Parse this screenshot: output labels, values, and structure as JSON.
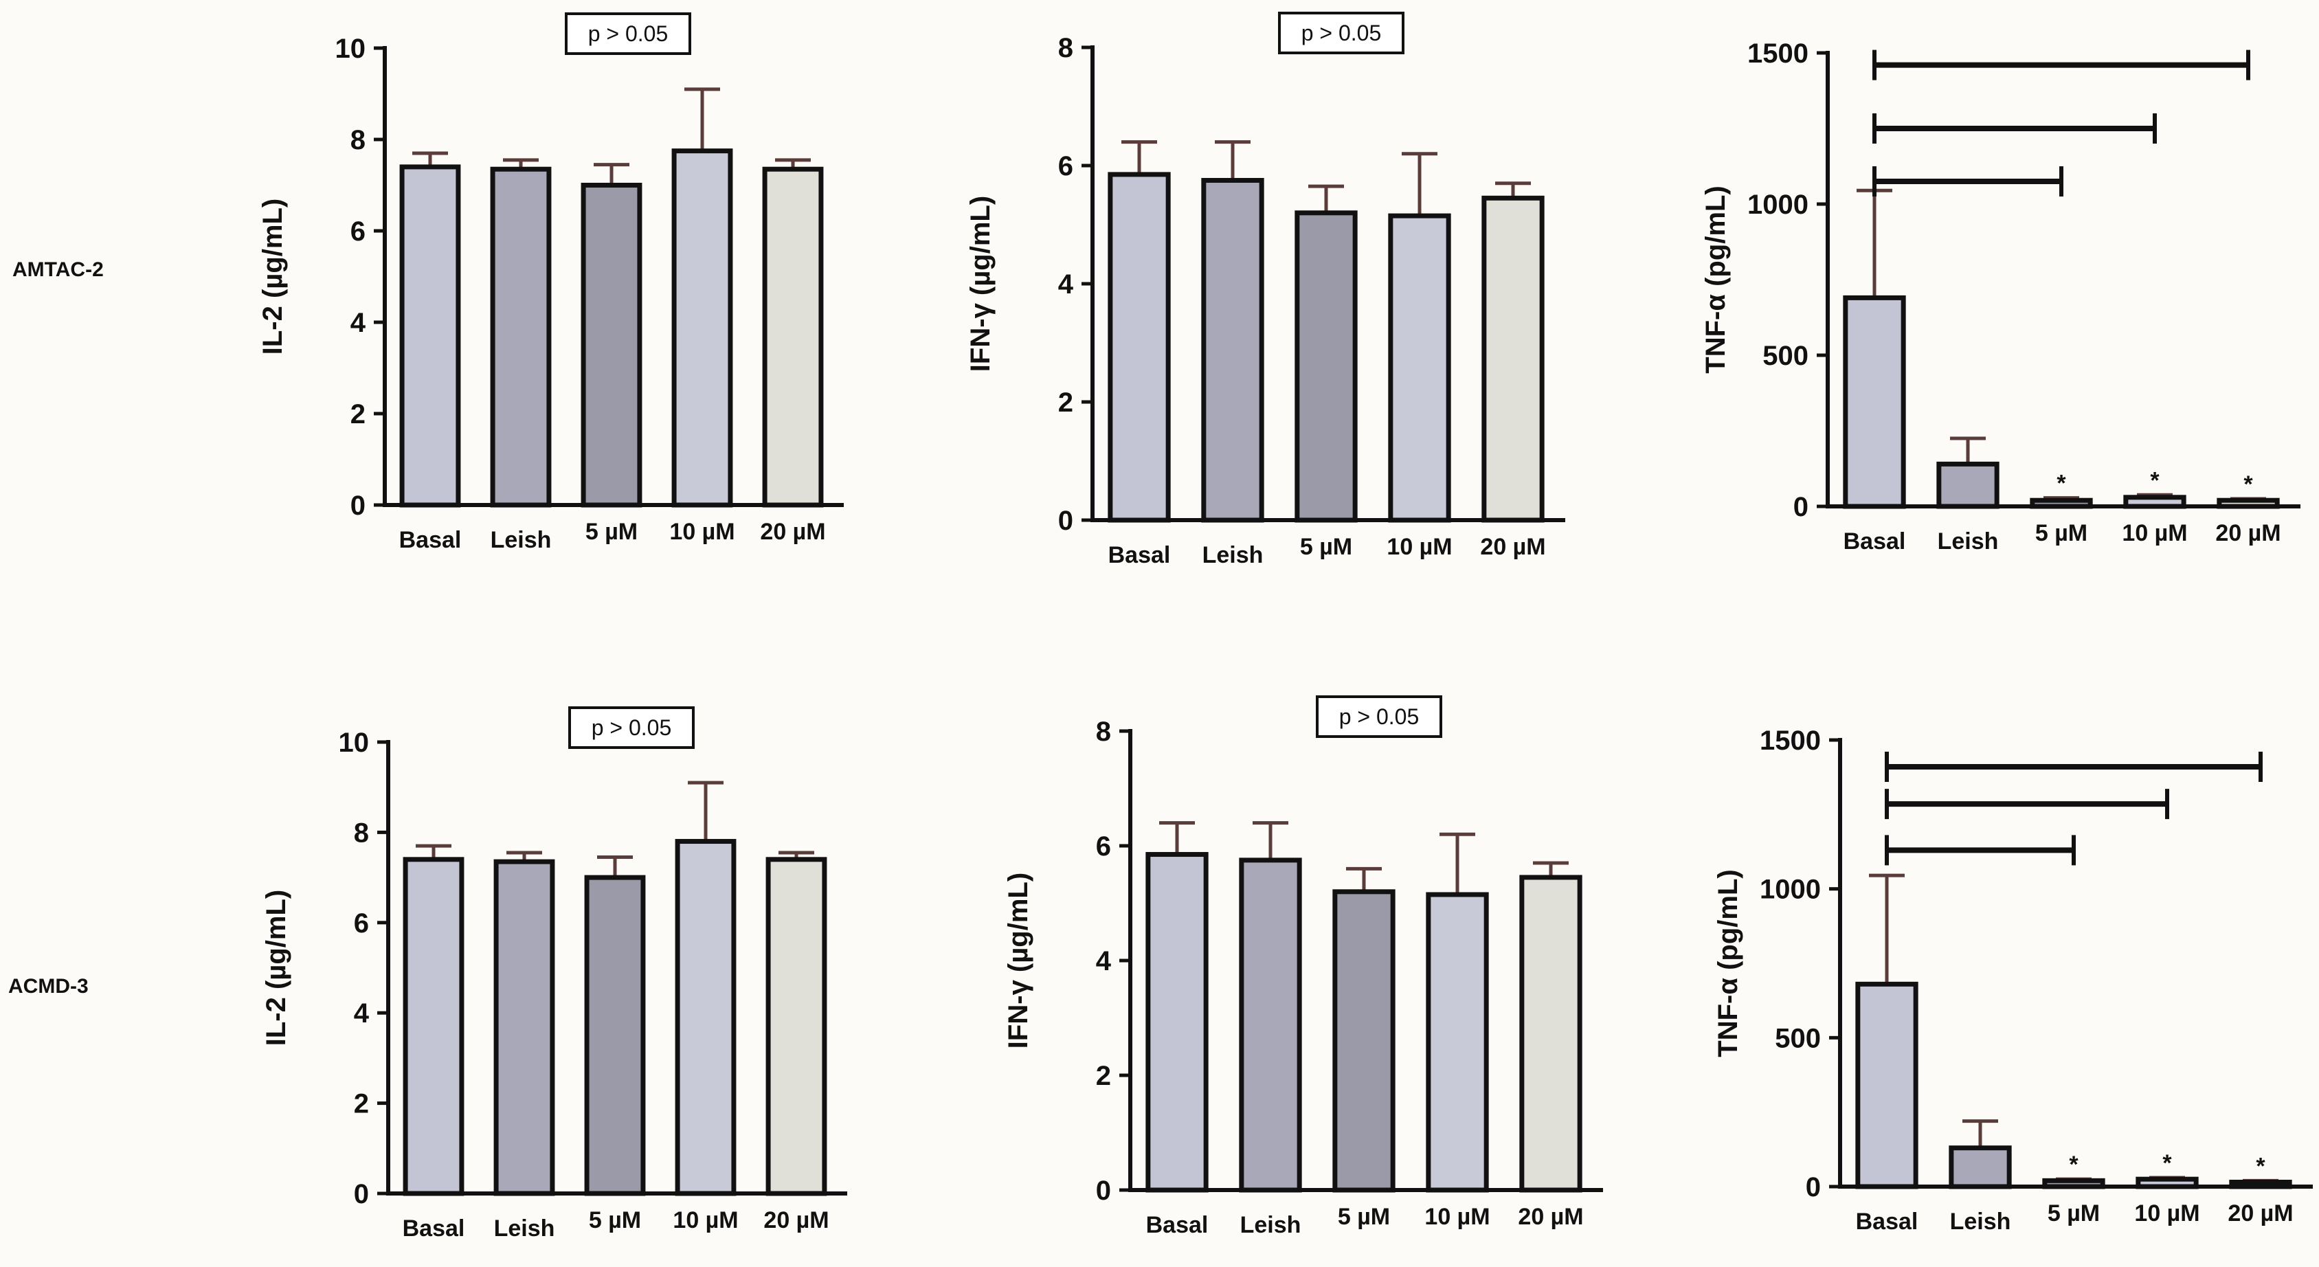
{
  "rows": [
    {
      "label": "AMTAC-2"
    },
    {
      "label": "ACMD-3"
    }
  ],
  "chart_data": [
    {
      "type": "bar",
      "row": 0,
      "categories": [
        "Basal",
        "Leish",
        "5 µM",
        "10 µM",
        "20 µM"
      ],
      "values": [
        7.4,
        7.35,
        7.0,
        7.75,
        7.35
      ],
      "errors": [
        0.3,
        0.2,
        0.45,
        1.35,
        0.2
      ],
      "ylabel": "IL-2 (µg/mL)",
      "ylim": [
        0,
        10
      ],
      "yticks": [
        0,
        2,
        4,
        6,
        8,
        10
      ],
      "annotation": "p > 0.05",
      "asterisks": [
        "",
        "",
        "",
        "",
        ""
      ],
      "brackets": []
    },
    {
      "type": "bar",
      "row": 0,
      "categories": [
        "Basal",
        "Leish",
        "5 µM",
        "10 µM",
        "20 µM"
      ],
      "values": [
        5.85,
        5.75,
        5.2,
        5.15,
        5.45
      ],
      "errors": [
        0.55,
        0.65,
        0.45,
        1.05,
        0.25
      ],
      "ylabel": "IFN-γ (µg/mL)",
      "ylim": [
        0,
        8
      ],
      "yticks": [
        0,
        2,
        4,
        6,
        8
      ],
      "annotation": "p > 0.05",
      "asterisks": [
        "",
        "",
        "",
        "",
        ""
      ],
      "brackets": []
    },
    {
      "type": "bar",
      "row": 0,
      "categories": [
        "Basal",
        "Leish",
        "5 µM",
        "10 µM",
        "20 µM"
      ],
      "values": [
        690,
        140,
        20,
        30,
        20
      ],
      "errors": [
        355,
        85,
        8,
        8,
        5
      ],
      "ylabel": "TNF-α (pg/mL)",
      "ylim": [
        0,
        1500
      ],
      "yticks": [
        0,
        500,
        1000,
        1500
      ],
      "annotation": "",
      "asterisks": [
        "",
        "",
        "*",
        "*",
        "*"
      ],
      "brackets": [
        {
          "from": 0,
          "to": 4,
          "y": 1460
        },
        {
          "from": 0,
          "to": 3,
          "y": 1250
        },
        {
          "from": 0,
          "to": 2,
          "y": 1075
        }
      ]
    },
    {
      "type": "bar",
      "row": 1,
      "categories": [
        "Basal",
        "Leish",
        "5 µM",
        "10 µM",
        "20 µM"
      ],
      "values": [
        7.4,
        7.35,
        7.0,
        7.8,
        7.4
      ],
      "errors": [
        0.3,
        0.2,
        0.45,
        1.3,
        0.15
      ],
      "ylabel": "IL-2 (µg/mL)",
      "ylim": [
        0,
        10
      ],
      "yticks": [
        0,
        2,
        4,
        6,
        8,
        10
      ],
      "annotation": "p > 0.05",
      "asterisks": [
        "",
        "",
        "",
        "",
        ""
      ],
      "brackets": []
    },
    {
      "type": "bar",
      "row": 1,
      "categories": [
        "Basal",
        "Leish",
        "5 µM",
        "10 µM",
        "20 µM"
      ],
      "values": [
        5.85,
        5.75,
        5.2,
        5.15,
        5.45
      ],
      "errors": [
        0.55,
        0.65,
        0.4,
        1.05,
        0.25
      ],
      "ylabel": "IFN-γ (µg/mL)",
      "ylim": [
        0,
        8
      ],
      "yticks": [
        0,
        2,
        4,
        6,
        8
      ],
      "annotation": "p > 0.05",
      "asterisks": [
        "",
        "",
        "",
        "",
        ""
      ],
      "brackets": []
    },
    {
      "type": "bar",
      "row": 1,
      "categories": [
        "Basal",
        "Leish",
        "5 µM",
        "10 µM",
        "20 µM"
      ],
      "values": [
        680,
        130,
        20,
        25,
        15
      ],
      "errors": [
        365,
        90,
        5,
        5,
        5
      ],
      "ylabel": "TNF-α (pg/mL)",
      "ylim": [
        0,
        1500
      ],
      "yticks": [
        0,
        500,
        1000,
        1500
      ],
      "annotation": "",
      "asterisks": [
        "",
        "",
        "*",
        "*",
        "*"
      ],
      "brackets": [
        {
          "from": 0,
          "to": 4,
          "y": 1410
        },
        {
          "from": 0,
          "to": 3,
          "y": 1285
        },
        {
          "from": 0,
          "to": 2,
          "y": 1130
        }
      ]
    }
  ],
  "colors": {
    "axis": "#111111",
    "error_bar": "#5a3d3a",
    "bar_fills": [
      "#c4c5d4",
      "#a8a8b8",
      "#9a9aa8",
      "#c9cad8",
      "#e0dfd8"
    ],
    "background": "#fdfbf7"
  }
}
